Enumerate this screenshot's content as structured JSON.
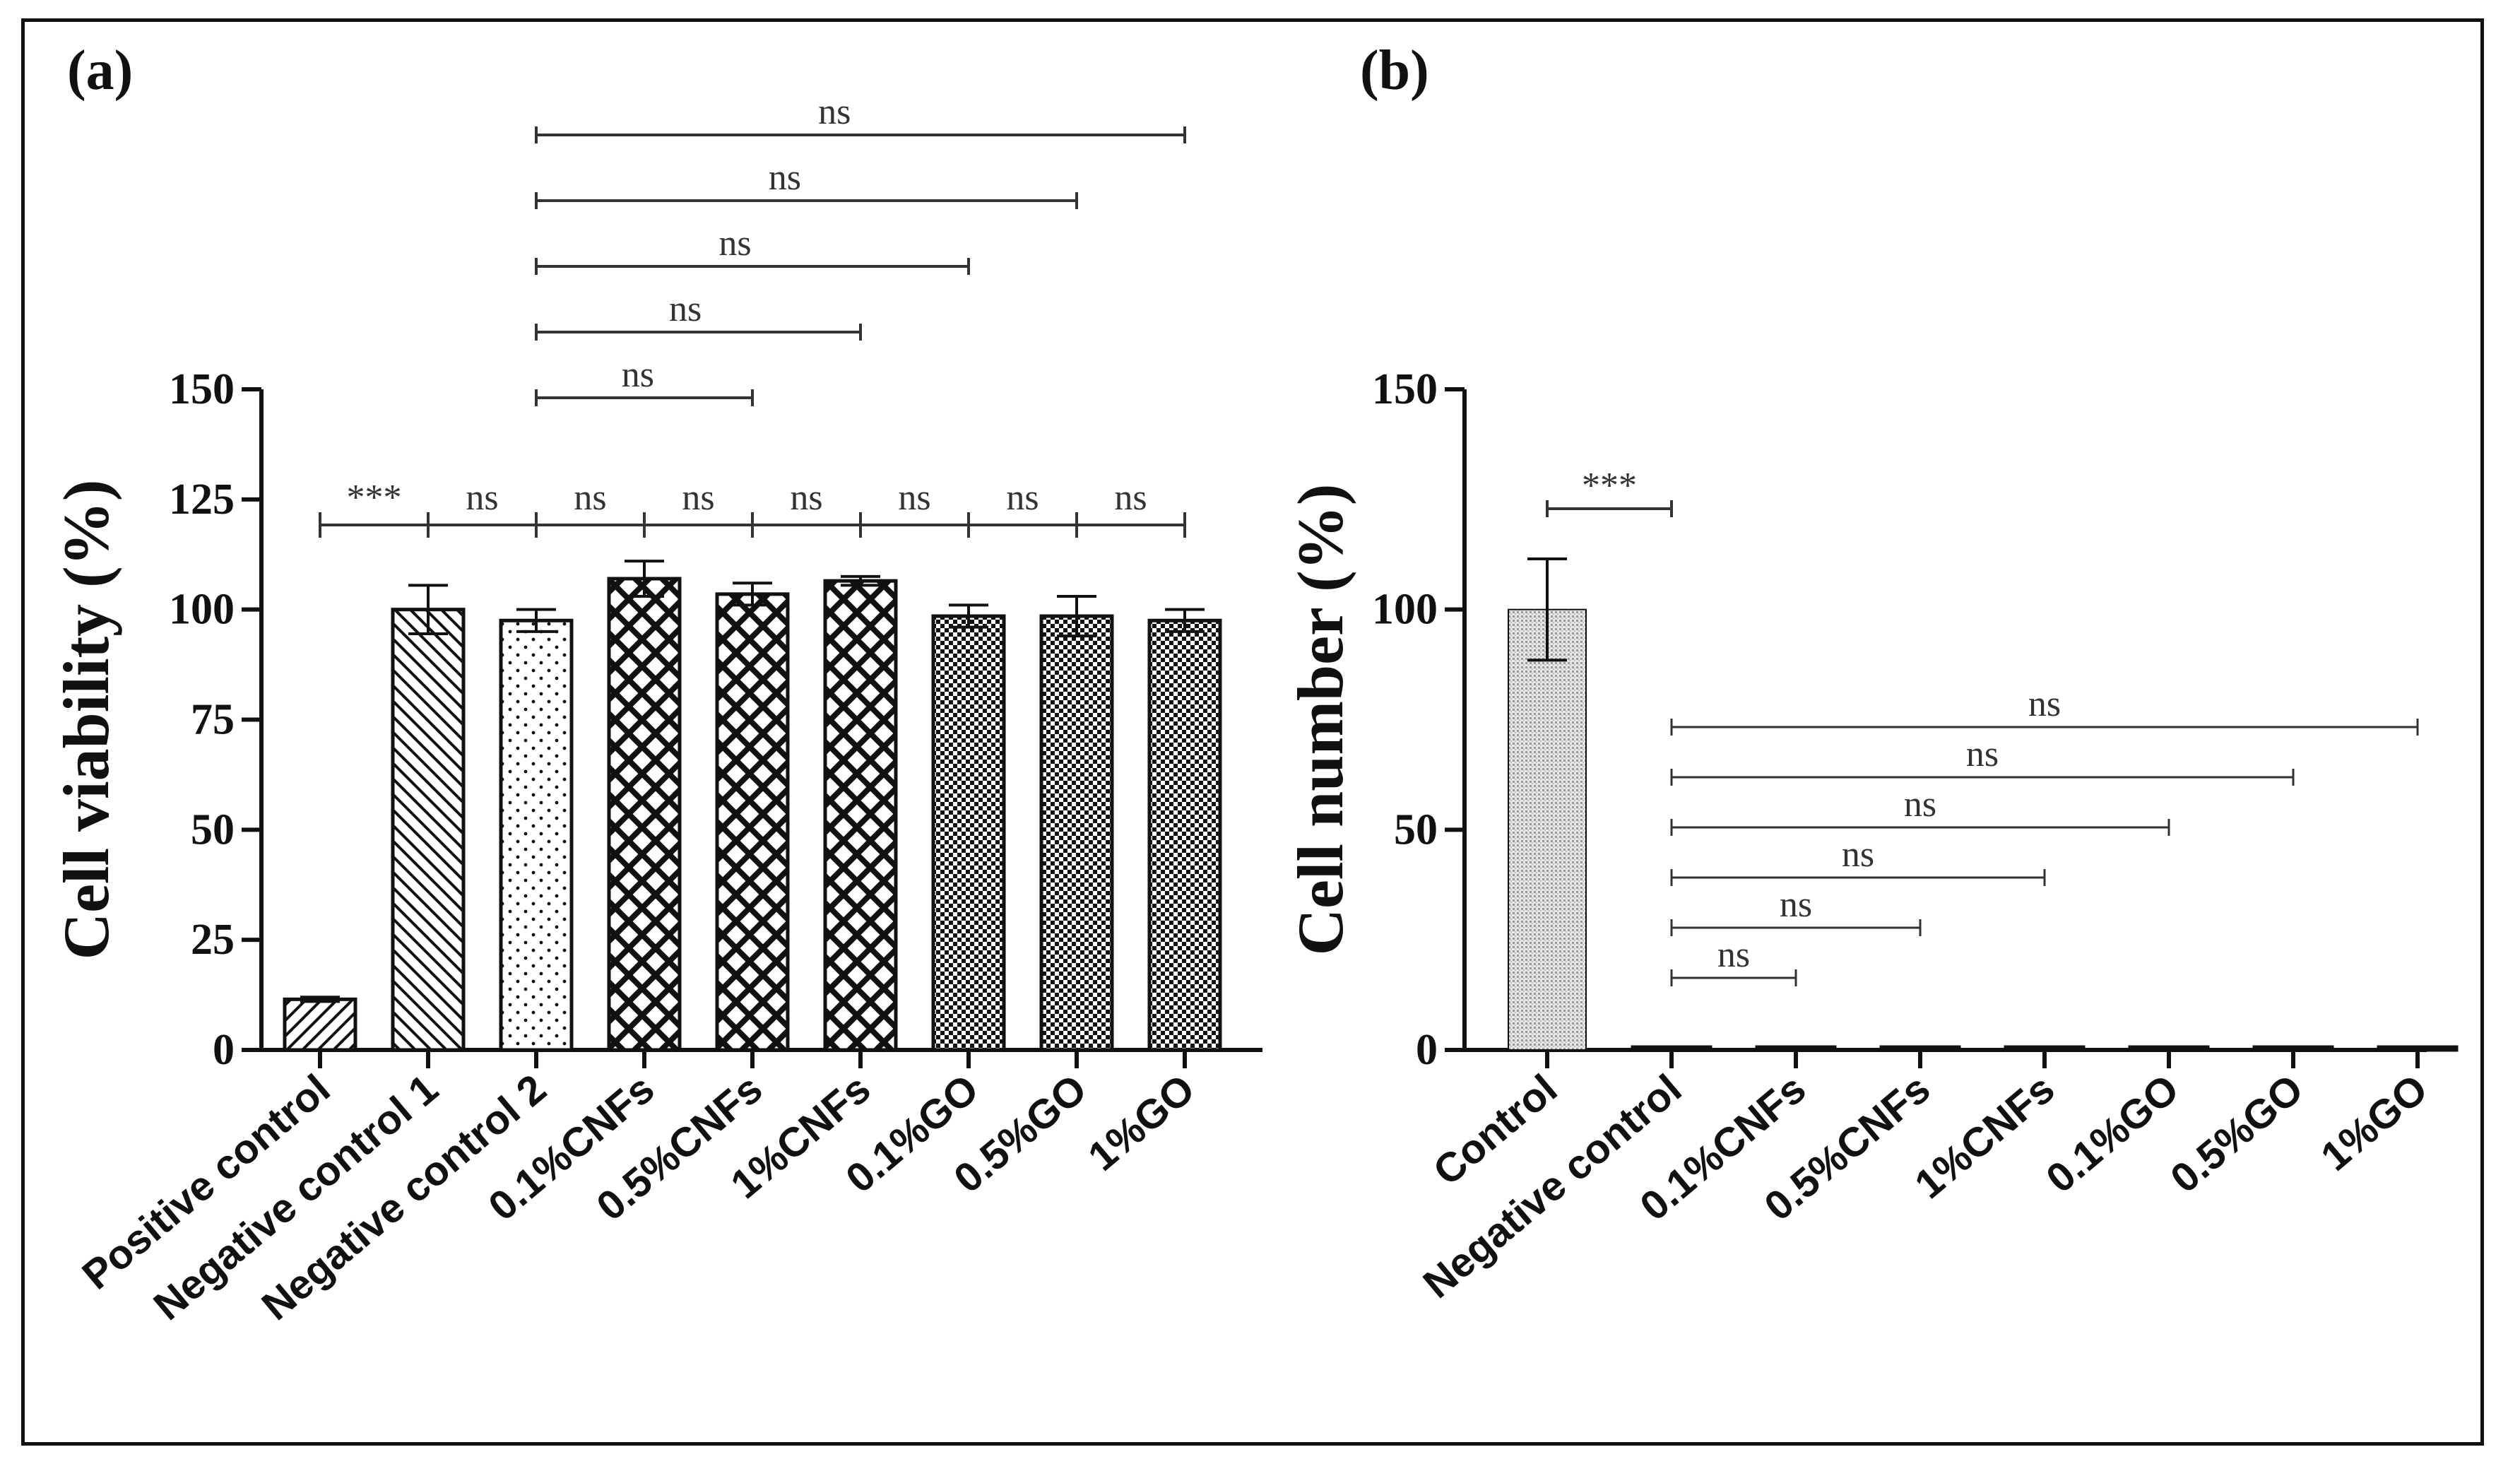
{
  "colors": {
    "ink": "#111111",
    "bracket": "#333333",
    "background": "#ffffff"
  },
  "chart_data": [
    {
      "panel_label": "(a)",
      "type": "bar",
      "ylabel": "Cell viability (%)",
      "xlabel": "",
      "ylim": [
        0,
        150
      ],
      "yticks": [
        0,
        25,
        50,
        75,
        100,
        125,
        150
      ],
      "categories": [
        "Positive control",
        "Negative control 1",
        "Negative control 2",
        "0.1%CNFs",
        "0.5%CNFs",
        "1%CNFs",
        "0.1%GO",
        "0.5%GO",
        "1%GO"
      ],
      "values": [
        11.5,
        100,
        97.5,
        107,
        103.5,
        106.5,
        98.5,
        98.5,
        97.5
      ],
      "errors": [
        0.5,
        5.5,
        2.5,
        4,
        2.5,
        1,
        2.5,
        4.5,
        2.5
      ],
      "patterns": [
        "diag-fwd",
        "diag-back",
        "dots",
        "crosshatch",
        "crosshatch",
        "crosshatch",
        "checker",
        "checker",
        "checker"
      ],
      "adjacent_comparisons": [
        {
          "from": 0,
          "to": 1,
          "label": "***"
        },
        {
          "from": 1,
          "to": 2,
          "label": "ns"
        },
        {
          "from": 2,
          "to": 3,
          "label": "ns"
        },
        {
          "from": 3,
          "to": 4,
          "label": "ns"
        },
        {
          "from": 4,
          "to": 5,
          "label": "ns"
        },
        {
          "from": 5,
          "to": 6,
          "label": "ns"
        },
        {
          "from": 6,
          "to": 7,
          "label": "ns"
        },
        {
          "from": 7,
          "to": 8,
          "label": "ns"
        }
      ],
      "comparisons": [
        {
          "from": 2,
          "to": 4,
          "label": "ns",
          "level": 1
        },
        {
          "from": 2,
          "to": 5,
          "label": "ns",
          "level": 2
        },
        {
          "from": 2,
          "to": 6,
          "label": "ns",
          "level": 3
        },
        {
          "from": 2,
          "to": 7,
          "label": "ns",
          "level": 4
        },
        {
          "from": 2,
          "to": 8,
          "label": "ns",
          "level": 5
        }
      ]
    },
    {
      "panel_label": "(b)",
      "type": "bar",
      "ylabel": "Cell number (%)",
      "xlabel": "",
      "ylim": [
        0,
        150
      ],
      "yticks": [
        0,
        50,
        100,
        150
      ],
      "categories": [
        "Control",
        "Negative control",
        "0.1%CNFs",
        "0.5%CNFs",
        "1%CNFs",
        "0.1%GO",
        "0.5%GO",
        "1%GO"
      ],
      "values": [
        100,
        0.5,
        0.5,
        0.5,
        0.5,
        0.5,
        0.5,
        0.5
      ],
      "errors": [
        11.5,
        0,
        0,
        0,
        0,
        0,
        0,
        0
      ],
      "patterns": [
        "fine-grey",
        "solid",
        "solid",
        "solid",
        "solid",
        "solid",
        "solid",
        "solid"
      ],
      "top_comparison": {
        "from": 0,
        "to": 1,
        "label": "***"
      },
      "comparisons": [
        {
          "from": 1,
          "to": 2,
          "label": "ns",
          "level": 1
        },
        {
          "from": 1,
          "to": 3,
          "label": "ns",
          "level": 2
        },
        {
          "from": 1,
          "to": 4,
          "label": "ns",
          "level": 3
        },
        {
          "from": 1,
          "to": 5,
          "label": "ns",
          "level": 4
        },
        {
          "from": 1,
          "to": 6,
          "label": "ns",
          "level": 5
        },
        {
          "from": 1,
          "to": 7,
          "label": "ns",
          "level": 6
        }
      ]
    }
  ]
}
